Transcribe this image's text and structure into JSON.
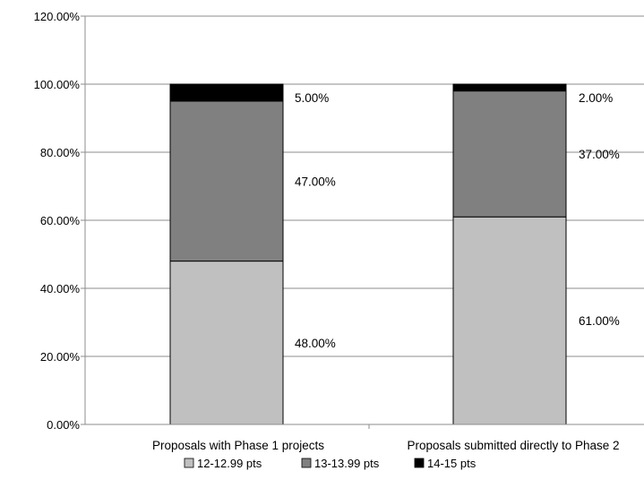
{
  "chart_data": {
    "type": "bar",
    "stacked": true,
    "categories": [
      "Proposals with Phase 1 projects",
      "Proposals submitted directly to Phase 2"
    ],
    "series": [
      {
        "name": "12-12.99 pts",
        "values": [
          48.0,
          61.0
        ],
        "labels": [
          "48.00%",
          "61.00%"
        ],
        "color": "#C0C0C0"
      },
      {
        "name": "13-13.99 pts",
        "values": [
          47.0,
          37.0
        ],
        "labels": [
          "47.00%",
          "37.00%"
        ],
        "color": "#808080"
      },
      {
        "name": "14-15 pts",
        "values": [
          5.0,
          2.0
        ],
        "labels": [
          "5.00%",
          "2.00%"
        ],
        "color": "#000000"
      }
    ],
    "y_ticks": [
      "0.00%",
      "20.00%",
      "40.00%",
      "60.00%",
      "80.00%",
      "100.00%",
      "120.00%"
    ],
    "ylim": [
      0,
      120
    ],
    "grid": true,
    "legend_position": "bottom"
  }
}
